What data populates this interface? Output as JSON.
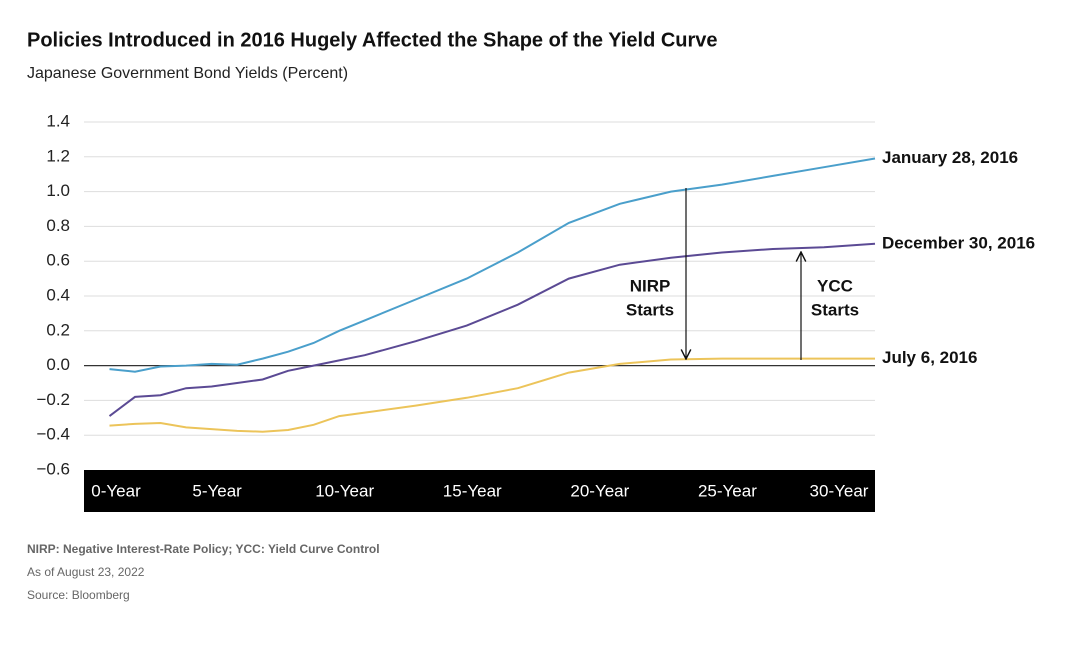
{
  "chart_data": {
    "type": "line",
    "title": "Policies Introduced in 2016 Hugely Affected the Shape of the Yield Curve",
    "subtitle": "Japanese Government Bond Yields (Percent)",
    "x": [
      0,
      1,
      2,
      3,
      4,
      5,
      6,
      7,
      8,
      9,
      10,
      12,
      14,
      16,
      18,
      20,
      22,
      24,
      26,
      28,
      30
    ],
    "xlim": [
      -1,
      30
    ],
    "xticks": [
      {
        "value": 0,
        "label": "0-Year"
      },
      {
        "value": 5,
        "label": "5-Year"
      },
      {
        "value": 10,
        "label": "10-Year"
      },
      {
        "value": 15,
        "label": "15-Year"
      },
      {
        "value": 20,
        "label": "20-Year"
      },
      {
        "value": 25,
        "label": "25-Year"
      },
      {
        "value": 30,
        "label": "30-Year"
      }
    ],
    "ylim": [
      -0.6,
      1.4
    ],
    "yticks": [
      {
        "value": -0.6,
        "label": "−0.6"
      },
      {
        "value": -0.4,
        "label": "−0.4"
      },
      {
        "value": -0.2,
        "label": "−0.2"
      },
      {
        "value": 0,
        "label": "0.0"
      },
      0.2,
      0.4,
      0.6,
      0.8,
      {
        "value": 1,
        "label": "1.0"
      },
      1.2,
      1.4
    ],
    "grid": true,
    "series": [
      {
        "name": "January 28, 2016",
        "color": "#4a9fcb",
        "values": [
          -0.02,
          -0.035,
          -0.005,
          0.0,
          0.01,
          0.005,
          0.04,
          0.08,
          0.13,
          0.2,
          0.26,
          0.38,
          0.5,
          0.65,
          0.82,
          0.93,
          1.0,
          1.04,
          1.09,
          1.14,
          1.19
        ]
      },
      {
        "name": "December 30, 2016",
        "color": "#5b4a94",
        "values": [
          -0.29,
          -0.18,
          -0.17,
          -0.13,
          -0.12,
          -0.1,
          -0.08,
          -0.03,
          0.0,
          0.03,
          0.06,
          0.14,
          0.23,
          0.35,
          0.5,
          0.58,
          0.62,
          0.65,
          0.67,
          0.68,
          0.7
        ]
      },
      {
        "name": "July 6, 2016",
        "color": "#ecc45a",
        "values": [
          -0.345,
          -0.335,
          -0.33,
          -0.355,
          -0.365,
          -0.375,
          -0.38,
          -0.37,
          -0.34,
          -0.29,
          -0.27,
          -0.23,
          -0.185,
          -0.13,
          -0.04,
          0.01,
          0.035,
          0.04,
          0.04,
          0.04,
          0.04
        ]
      }
    ],
    "annotations": [
      [
        "NIRP",
        "Starts"
      ],
      [
        "YCC",
        "Starts"
      ]
    ],
    "notes": [
      "NIRP: Negative Interest-Rate Policy; YCC: Yield Curve Control",
      "As of August 23, 2022",
      "Source: Bloomberg"
    ]
  }
}
